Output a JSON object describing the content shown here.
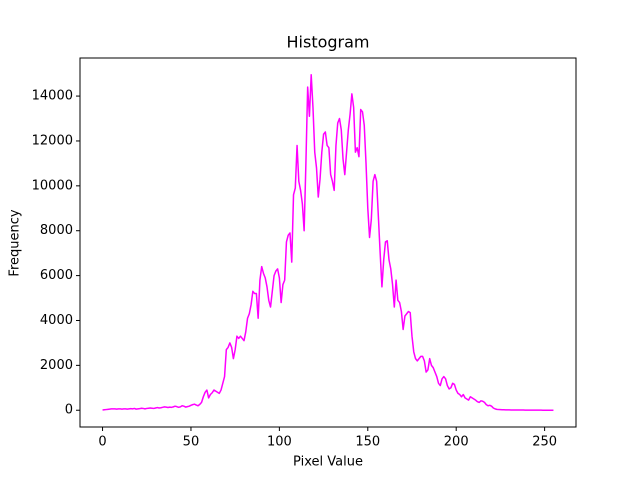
{
  "chart_data": {
    "type": "line",
    "title": "Histogram",
    "xlabel": "Pixel Value",
    "ylabel": "Frequency",
    "x": [
      0,
      1,
      2,
      3,
      4,
      5,
      6,
      7,
      8,
      9,
      10,
      11,
      12,
      13,
      14,
      15,
      16,
      17,
      18,
      19,
      20,
      21,
      22,
      23,
      24,
      25,
      26,
      27,
      28,
      29,
      30,
      31,
      32,
      33,
      34,
      35,
      36,
      37,
      38,
      39,
      40,
      41,
      42,
      43,
      44,
      45,
      46,
      47,
      48,
      49,
      50,
      51,
      52,
      53,
      54,
      55,
      56,
      57,
      58,
      59,
      60,
      61,
      62,
      63,
      64,
      65,
      66,
      67,
      68,
      69,
      70,
      71,
      72,
      73,
      74,
      75,
      76,
      77,
      78,
      79,
      80,
      81,
      82,
      83,
      84,
      85,
      86,
      87,
      88,
      89,
      90,
      91,
      92,
      93,
      94,
      95,
      96,
      97,
      98,
      99,
      100,
      101,
      102,
      103,
      104,
      105,
      106,
      107,
      108,
      109,
      110,
      111,
      112,
      113,
      114,
      115,
      116,
      117,
      118,
      119,
      120,
      121,
      122,
      123,
      124,
      125,
      126,
      127,
      128,
      129,
      130,
      131,
      132,
      133,
      134,
      135,
      136,
      137,
      138,
      139,
      140,
      141,
      142,
      143,
      144,
      145,
      146,
      147,
      148,
      149,
      150,
      151,
      152,
      153,
      154,
      155,
      156,
      157,
      158,
      159,
      160,
      161,
      162,
      163,
      164,
      165,
      166,
      167,
      168,
      169,
      170,
      171,
      172,
      173,
      174,
      175,
      176,
      177,
      178,
      179,
      180,
      181,
      182,
      183,
      184,
      185,
      186,
      187,
      188,
      189,
      190,
      191,
      192,
      193,
      194,
      195,
      196,
      197,
      198,
      199,
      200,
      201,
      202,
      203,
      204,
      205,
      206,
      207,
      208,
      209,
      210,
      211,
      212,
      213,
      214,
      215,
      216,
      217,
      218,
      219,
      220,
      221,
      222,
      223,
      224,
      225,
      226,
      227,
      228,
      229,
      230,
      231,
      232,
      233,
      234,
      235,
      236,
      237,
      238,
      239,
      240,
      241,
      242,
      243,
      244,
      245,
      246,
      247,
      248,
      249,
      250,
      251,
      252,
      253,
      254,
      255
    ],
    "series": [
      {
        "color": "#ff00ff",
        "values": [
          10,
          20,
          30,
          40,
          50,
          60,
          60,
          60,
          50,
          60,
          60,
          50,
          60,
          60,
          50,
          60,
          70,
          60,
          80,
          50,
          60,
          70,
          90,
          80,
          60,
          80,
          90,
          100,
          90,
          80,
          100,
          120,
          100,
          110,
          130,
          150,
          140,
          120,
          140,
          130,
          150,
          180,
          160,
          130,
          150,
          200,
          180,
          140,
          160,
          180,
          220,
          250,
          270,
          230,
          200,
          260,
          350,
          600,
          800,
          900,
          550,
          700,
          780,
          900,
          850,
          800,
          750,
          900,
          1200,
          1500,
          2700,
          2800,
          3000,
          2800,
          2300,
          2700,
          3300,
          3200,
          3300,
          3200,
          3100,
          3500,
          4100,
          4300,
          4700,
          5300,
          5200,
          5200,
          4100,
          5800,
          6400,
          6100,
          5900,
          5500,
          4900,
          4600,
          5300,
          6000,
          6200,
          6300,
          5900,
          4800,
          5600,
          5800,
          7500,
          7800,
          7900,
          6600,
          9600,
          9900,
          11800,
          10200,
          9800,
          9200,
          8000,
          11000,
          14400,
          13100,
          14950,
          13500,
          11500,
          10800,
          9500,
          10300,
          11500,
          12300,
          12400,
          11800,
          11700,
          10500,
          10200,
          9800,
          11800,
          12800,
          13000,
          12500,
          11200,
          10500,
          11500,
          12500,
          13200,
          14100,
          13500,
          11500,
          11700,
          11300,
          13400,
          13300,
          12700,
          11000,
          9000,
          7700,
          8500,
          10200,
          10500,
          10200,
          8600,
          7000,
          5500,
          6700,
          7500,
          7550,
          6700,
          6300,
          5600,
          4600,
          5800,
          4900,
          4800,
          4400,
          3600,
          4200,
          4300,
          4400,
          4350,
          3300,
          2600,
          2300,
          2200,
          2300,
          2400,
          2400,
          2200,
          1700,
          1800,
          2300,
          2000,
          1900,
          1700,
          1500,
          1200,
          1100,
          1400,
          1500,
          1400,
          1100,
          950,
          1000,
          1200,
          1150,
          900,
          750,
          700,
          600,
          700,
          550,
          500,
          450,
          600,
          550,
          500,
          450,
          380,
          350,
          420,
          400,
          350,
          250,
          200,
          220,
          180,
          100,
          60,
          40,
          30,
          25,
          20,
          20,
          18,
          15,
          15,
          12,
          12,
          10,
          10,
          10,
          8,
          8,
          8,
          6,
          6,
          5,
          5,
          5,
          4,
          4,
          3,
          3,
          3,
          2,
          2,
          2,
          1,
          1,
          1,
          0
        ]
      }
    ],
    "xlim": [
      -12.75,
      267.75
    ],
    "xticks": [
      0,
      50,
      100,
      150,
      200,
      250
    ],
    "ylim": [
      -747,
      15697
    ],
    "yticks": [
      0,
      2000,
      4000,
      6000,
      8000,
      10000,
      12000,
      14000
    ]
  }
}
